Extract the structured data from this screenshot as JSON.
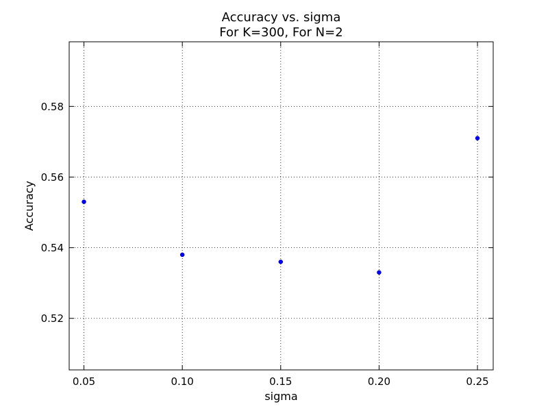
{
  "chart_data": {
    "type": "scatter",
    "title": "Accuracy vs. sigma",
    "subtitle": "For K=300, For N=2",
    "xlabel": "sigma",
    "ylabel": "Accuracy",
    "xlim": [
      0.0425,
      0.258
    ],
    "ylim": [
      0.5054,
      0.5983
    ],
    "x_ticks": [
      0.05,
      0.1,
      0.15,
      0.2,
      0.25
    ],
    "x_tick_labels": [
      "0.05",
      "0.10",
      "0.15",
      "0.20",
      "0.25"
    ],
    "y_ticks": [
      0.52,
      0.54,
      0.56,
      0.58
    ],
    "y_tick_labels": [
      "0.52",
      "0.54",
      "0.56",
      "0.58"
    ],
    "grid": true,
    "series": [
      {
        "color": "#0000ff",
        "points": [
          {
            "x": 0.05,
            "y": 0.553
          },
          {
            "x": 0.1,
            "y": 0.538
          },
          {
            "x": 0.15,
            "y": 0.536
          },
          {
            "x": 0.2,
            "y": 0.533
          },
          {
            "x": 0.25,
            "y": 0.571
          }
        ]
      }
    ]
  }
}
